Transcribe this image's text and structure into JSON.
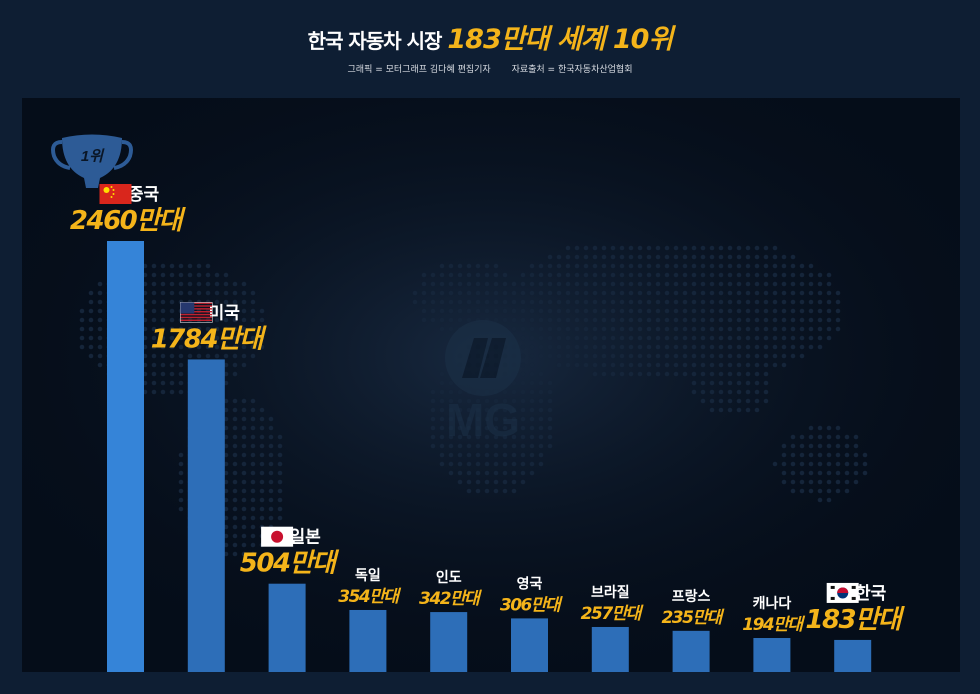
{
  "header": {
    "title_prefix": "한국 자동차 시장",
    "title_highlight": "183만대 세계 10위",
    "credit_graphic": "그래픽 = 모터그래프 김다혜 편집기자",
    "credit_source": "자료출처 = 한국자동차산업협회"
  },
  "trophy_label": "1위",
  "watermark": "MG",
  "colors": {
    "background": "#0e1e33",
    "panel": "#050d19",
    "bar_top": "#3584d8",
    "bar": "#2d6eb8",
    "value": "#f4b41a",
    "label": "#ffffff"
  },
  "chart_data": {
    "type": "bar",
    "title": "한국 자동차 시장 183만대 세계 10위",
    "categories": [
      "중국",
      "미국",
      "일본",
      "독일",
      "인도",
      "영국",
      "브라질",
      "프랑스",
      "캐나다",
      "한국"
    ],
    "values": [
      2460,
      1784,
      504,
      354,
      342,
      306,
      257,
      235,
      194,
      183
    ],
    "value_labels": [
      "2460만대",
      "1784만대",
      "504만대",
      "354만대",
      "342만대",
      "306만대",
      "257만대",
      "235만대",
      "194만대",
      "183만대"
    ],
    "flags": [
      "china-flag-icon",
      "usa-flag-icon",
      "japan-flag-icon",
      null,
      null,
      null,
      null,
      null,
      null,
      "korea-flag-icon"
    ],
    "unit": "만대",
    "ylim": [
      0,
      2460
    ],
    "grid": false,
    "legend": "none"
  }
}
